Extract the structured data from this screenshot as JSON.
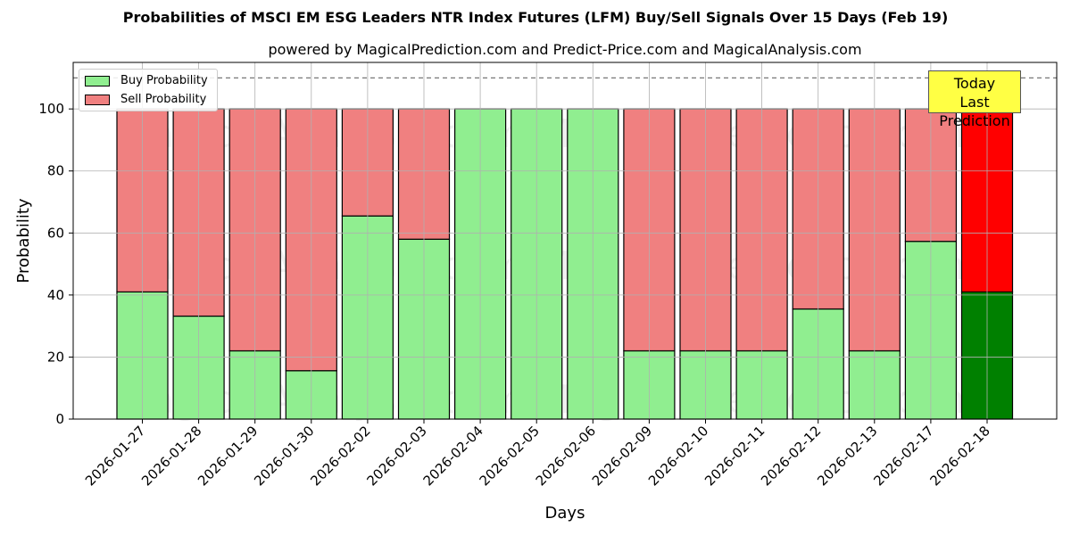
{
  "title": "Probabilities of MSCI EM ESG Leaders NTR Index Futures (LFM) Buy/Sell Signals Over 15 Days (Feb 19)",
  "subtitle": "powered by MagicalPrediction.com and Predict-Price.com and MagicalAnalysis.com",
  "legend": {
    "buy": "Buy Probability",
    "sell": "Sell Probability"
  },
  "annotation": {
    "line1": "Today",
    "line2": "Last Prediction"
  },
  "watermarks": [
    "MagicalAnalysis.com",
    "MagicalPrediction.com"
  ],
  "colors": {
    "buy": "#90ee90",
    "sell": "#f08080",
    "today_buy": "#008000",
    "today_sell": "#ff0000",
    "annotation_bg": "#ffff44"
  },
  "chart_data": {
    "type": "bar",
    "stacked": true,
    "title": "Probabilities of MSCI EM ESG Leaders NTR Index Futures (LFM) Buy/Sell Signals Over 15 Days (Feb 19)",
    "subtitle": "powered by MagicalPrediction.com and Predict-Price.com and MagicalAnalysis.com",
    "xlabel": "Days",
    "ylabel": "Probability",
    "ylim": [
      0,
      115
    ],
    "yticks": [
      0,
      20,
      40,
      60,
      80,
      100
    ],
    "reference_line": 110,
    "grid": true,
    "legend_position": "upper left",
    "categories": [
      "2026-01-27",
      "2026-01-28",
      "2026-01-29",
      "2026-01-30",
      "2026-02-02",
      "2026-02-03",
      "2026-02-04",
      "2026-02-05",
      "2026-02-06",
      "2026-02-09",
      "2026-02-10",
      "2026-02-11",
      "2026-02-12",
      "2026-02-13",
      "2026-02-17",
      "2026-02-18"
    ],
    "series": [
      {
        "name": "Buy Probability",
        "values": [
          41,
          33.2,
          22,
          15.6,
          65.5,
          58,
          100,
          100,
          100,
          22,
          22,
          22,
          35.5,
          22,
          57.3,
          41
        ]
      },
      {
        "name": "Sell Probability",
        "values": [
          59,
          66.8,
          78,
          84.4,
          34.5,
          42,
          0,
          0,
          0,
          78,
          78,
          78,
          64.5,
          78,
          42.7,
          59
        ]
      }
    ],
    "highlight": {
      "category": "2026-02-18",
      "label": "Today Last Prediction"
    }
  }
}
